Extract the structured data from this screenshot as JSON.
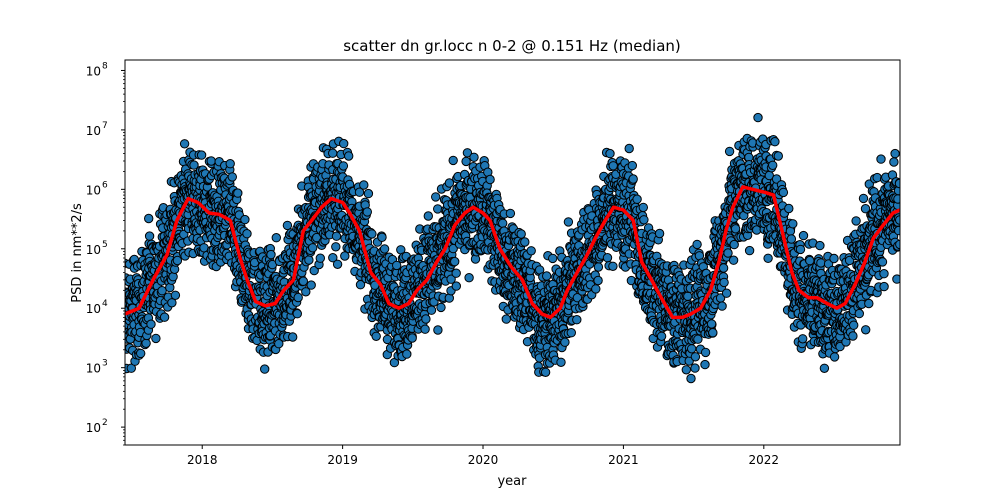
{
  "chart_data": {
    "type": "scatter",
    "title": "scatter dn gr.locc n 0-2 @ 0.151 Hz (median)",
    "xlabel": "year",
    "ylabel": "PSD in nm**2/s",
    "y_scale": "log",
    "xlim": [
      2017.45,
      2022.97
    ],
    "ylim": [
      50,
      150000000
    ],
    "x_ticks": [
      2018,
      2019,
      2020,
      2021,
      2022
    ],
    "y_ticks": [
      {
        "value": 100,
        "base": "10",
        "exp": "2"
      },
      {
        "value": 1000,
        "base": "10",
        "exp": "3"
      },
      {
        "value": 10000,
        "base": "10",
        "exp": "4"
      },
      {
        "value": 100000,
        "base": "10",
        "exp": "5"
      },
      {
        "value": 1000000,
        "base": "10",
        "exp": "6"
      },
      {
        "value": 10000000,
        "base": "10",
        "exp": "7"
      },
      {
        "value": 100000000,
        "base": "10",
        "exp": "8"
      }
    ],
    "grid": false,
    "colors": {
      "points_fill": "#1f77b4",
      "points_edge": "#000000",
      "median_line": "#ff0000"
    },
    "median_series": {
      "x": [
        2017.45,
        2017.55,
        2017.65,
        2017.75,
        2017.82,
        2017.9,
        2017.97,
        2018.05,
        2018.12,
        2018.2,
        2018.27,
        2018.32,
        2018.38,
        2018.45,
        2018.52,
        2018.58,
        2018.65,
        2018.72,
        2018.78,
        2018.85,
        2018.92,
        2019.0,
        2019.05,
        2019.12,
        2019.2,
        2019.27,
        2019.33,
        2019.4,
        2019.47,
        2019.53,
        2019.6,
        2019.67,
        2019.73,
        2019.8,
        2019.87,
        2019.93,
        2020.0,
        2020.05,
        2020.12,
        2020.2,
        2020.28,
        2020.35,
        2020.42,
        2020.48,
        2020.55,
        2020.6,
        2020.67,
        2020.73,
        2020.8,
        2020.87,
        2020.93,
        2021.0,
        2021.07,
        2021.13,
        2021.2,
        2021.27,
        2021.35,
        2021.42,
        2021.48,
        2021.55,
        2021.62,
        2021.68,
        2021.73,
        2021.78,
        2021.85,
        2021.92,
        2022.0,
        2022.07,
        2022.13,
        2022.2,
        2022.25,
        2022.32,
        2022.38,
        2022.45,
        2022.52,
        2022.58,
        2022.65,
        2022.72,
        2022.78,
        2022.85,
        2022.92,
        2022.97
      ],
      "y": [
        8000,
        10000,
        30000,
        80000,
        300000,
        700000,
        600000,
        400000,
        380000,
        300000,
        70000,
        30000,
        13000,
        11000,
        12000,
        20000,
        30000,
        200000,
        300000,
        500000,
        700000,
        600000,
        400000,
        200000,
        40000,
        25000,
        12000,
        10000,
        12000,
        20000,
        30000,
        60000,
        100000,
        250000,
        400000,
        500000,
        400000,
        300000,
        100000,
        50000,
        30000,
        12000,
        8000,
        7000,
        10000,
        20000,
        40000,
        70000,
        150000,
        300000,
        500000,
        450000,
        300000,
        60000,
        30000,
        15000,
        7000,
        7000,
        8000,
        10000,
        20000,
        60000,
        200000,
        500000,
        1100000,
        1000000,
        900000,
        800000,
        200000,
        40000,
        20000,
        15000,
        15000,
        12000,
        10000,
        12000,
        25000,
        60000,
        150000,
        250000,
        400000,
        450000
      ]
    },
    "scatter_summary": "dense daily samples spread roughly 1.5 decades around the median line"
  }
}
